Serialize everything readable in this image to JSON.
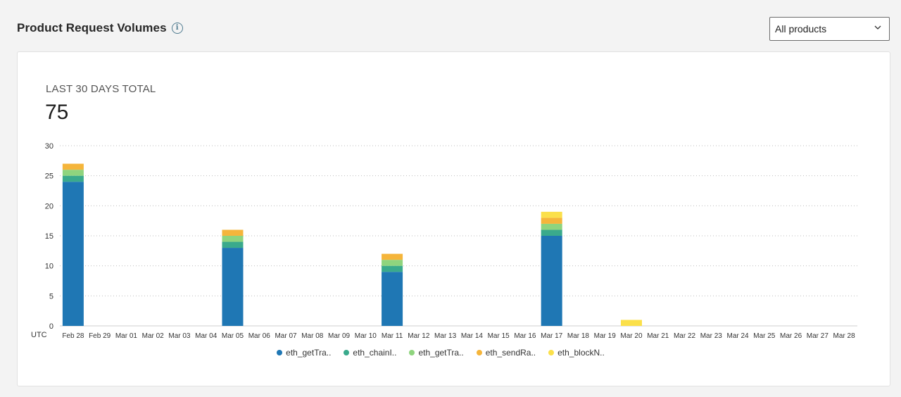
{
  "header": {
    "title": "Product Request Volumes",
    "info_icon": "info-icon"
  },
  "product_select": {
    "value": "All products",
    "icon": "chevron-down-icon"
  },
  "summary": {
    "label": "LAST 30 DAYS TOTAL",
    "value": "75"
  },
  "colors": {
    "s1": "#1f77b4",
    "s2": "#3aaa8c",
    "s3": "#8fd47e",
    "s4": "#f5b53b",
    "s5": "#fbe04a",
    "grid": "#bdbdbd",
    "background": "#f3f3f3"
  },
  "chart_data": {
    "type": "bar",
    "stacked": true,
    "timezone_label": "UTC",
    "ylim": [
      0,
      30
    ],
    "yticks": [
      0,
      5,
      10,
      15,
      20,
      25,
      30
    ],
    "grid": true,
    "legend_position": "bottom",
    "categories": [
      "Feb 28",
      "Feb 29",
      "Mar 01",
      "Mar 02",
      "Mar 03",
      "Mar 04",
      "Mar 05",
      "Mar 06",
      "Mar 07",
      "Mar 08",
      "Mar 09",
      "Mar 10",
      "Mar 11",
      "Mar 12",
      "Mar 13",
      "Mar 14",
      "Mar 15",
      "Mar 16",
      "Mar 17",
      "Mar 18",
      "Mar 19",
      "Mar 20",
      "Mar 21",
      "Mar 22",
      "Mar 23",
      "Mar 24",
      "Mar 25",
      "Mar 26",
      "Mar 27",
      "Mar 28"
    ],
    "series": [
      {
        "name": "eth_getTra..",
        "color": "#1f77b4",
        "values": [
          24,
          0,
          0,
          0,
          0,
          0,
          13,
          0,
          0,
          0,
          0,
          0,
          9,
          0,
          0,
          0,
          0,
          0,
          15,
          0,
          0,
          0,
          0,
          0,
          0,
          0,
          0,
          0,
          0,
          0
        ]
      },
      {
        "name": "eth_chainI..",
        "color": "#3aaa8c",
        "values": [
          1,
          0,
          0,
          0,
          0,
          0,
          1,
          0,
          0,
          0,
          0,
          0,
          1,
          0,
          0,
          0,
          0,
          0,
          1,
          0,
          0,
          0,
          0,
          0,
          0,
          0,
          0,
          0,
          0,
          0
        ]
      },
      {
        "name": "eth_getTra..",
        "color": "#8fd47e",
        "values": [
          1,
          0,
          0,
          0,
          0,
          0,
          1,
          0,
          0,
          0,
          0,
          0,
          1,
          0,
          0,
          0,
          0,
          0,
          1,
          0,
          0,
          0,
          0,
          0,
          0,
          0,
          0,
          0,
          0,
          0
        ]
      },
      {
        "name": "eth_sendRa..",
        "color": "#f5b53b",
        "values": [
          1,
          0,
          0,
          0,
          0,
          0,
          1,
          0,
          0,
          0,
          0,
          0,
          1,
          0,
          0,
          0,
          0,
          0,
          1,
          0,
          0,
          0,
          0,
          0,
          0,
          0,
          0,
          0,
          0,
          0
        ]
      },
      {
        "name": "eth_blockN..",
        "color": "#fbe04a",
        "values": [
          0,
          0,
          0,
          0,
          0,
          0,
          0,
          0,
          0,
          0,
          0,
          0,
          0,
          0,
          0,
          0,
          0,
          0,
          1,
          0,
          0,
          1,
          0,
          0,
          0,
          0,
          0,
          0,
          0,
          0
        ]
      }
    ]
  }
}
